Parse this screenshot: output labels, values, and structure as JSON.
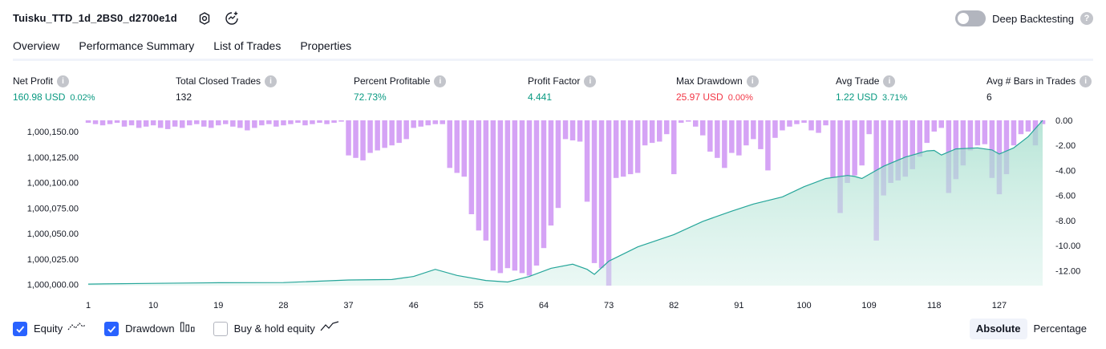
{
  "header": {
    "strategy_name": "Tuisku_TTD_1d_2BS0_d2700e1d",
    "deep_backtesting_label": "Deep Backtesting",
    "deep_backtesting_enabled": false
  },
  "tabs": [
    {
      "label": "Overview",
      "active": true
    },
    {
      "label": "Performance Summary",
      "active": false
    },
    {
      "label": "List of Trades",
      "active": false
    },
    {
      "label": "Properties",
      "active": false
    }
  ],
  "metrics": [
    {
      "label": "Net Profit",
      "value": "160.98 USD",
      "sub": "0.02%",
      "color": "#089981"
    },
    {
      "label": "Total Closed Trades",
      "value": "132",
      "sub": "",
      "color": "#131722"
    },
    {
      "label": "Percent Profitable",
      "value": "72.73%",
      "sub": "",
      "color": "#089981"
    },
    {
      "label": "Profit Factor",
      "value": "4.441",
      "sub": "",
      "color": "#089981"
    },
    {
      "label": "Max Drawdown",
      "value": "25.97 USD",
      "sub": "0.00%",
      "color": "#f23645"
    },
    {
      "label": "Avg Trade",
      "value": "1.22 USD",
      "sub": "3.71%",
      "color": "#089981"
    },
    {
      "label": "Avg # Bars in Trades",
      "value": "6",
      "sub": "",
      "color": "#131722"
    }
  ],
  "chart_data": {
    "type": "area",
    "left_axis_ticks": [
      "1,000,150.00",
      "1,000,125.00",
      "1,000,100.00",
      "1,000,075.00",
      "1,000,050.00",
      "1,000,025.00",
      "1,000,000.00"
    ],
    "left_axis_values": [
      1000150,
      1000125,
      1000100,
      1000075,
      1000050,
      1000025,
      1000000
    ],
    "right_axis_ticks": [
      "0.00",
      "-2.00",
      "-4.00",
      "-6.00",
      "-8.00",
      "-10.00",
      "-12.00"
    ],
    "right_axis_values": [
      0,
      -2,
      -4,
      -6,
      -8,
      -10,
      -12
    ],
    "x_ticks": [
      "1",
      "10",
      "19",
      "28",
      "37",
      "46",
      "55",
      "64",
      "73",
      "82",
      "91",
      "100",
      "109",
      "118",
      "127"
    ],
    "x_range": [
      1,
      133
    ],
    "equity_range": [
      999999,
      1000161
    ],
    "drawdown_range": [
      -13.2,
      0
    ],
    "series": [
      {
        "name": "Equity",
        "color": "#26a69a",
        "points": [
          [
            1,
            1000000.5
          ],
          [
            10,
            1000001.2
          ],
          [
            19,
            1000001.8
          ],
          [
            28,
            1000002.0
          ],
          [
            37,
            1000004.5
          ],
          [
            43,
            1000005
          ],
          [
            46,
            1000008
          ],
          [
            49,
            1000015
          ],
          [
            52,
            1000009
          ],
          [
            56,
            1000004
          ],
          [
            59,
            1000002.5
          ],
          [
            62,
            1000008
          ],
          [
            65,
            1000016
          ],
          [
            68,
            1000020
          ],
          [
            70,
            1000015
          ],
          [
            71,
            1000010
          ],
          [
            73,
            1000023
          ],
          [
            77,
            1000037
          ],
          [
            82,
            1000049
          ],
          [
            86,
            1000062
          ],
          [
            90,
            1000072
          ],
          [
            93,
            1000079
          ],
          [
            97,
            1000086
          ],
          [
            100,
            1000096
          ],
          [
            103,
            1000104
          ],
          [
            106,
            1000107
          ],
          [
            107,
            1000106
          ],
          [
            108,
            1000104
          ],
          [
            109,
            1000108
          ],
          [
            111,
            1000116
          ],
          [
            114,
            1000125
          ],
          [
            117,
            1000131
          ],
          [
            118,
            1000131.5
          ],
          [
            119,
            1000127
          ],
          [
            121,
            1000133
          ],
          [
            124,
            1000134
          ],
          [
            126,
            1000132
          ],
          [
            127,
            1000128
          ],
          [
            129,
            1000134
          ],
          [
            131,
            1000145
          ],
          [
            133,
            1000161
          ]
        ]
      },
      {
        "name": "Drawdown",
        "color": "#ce93f3",
        "values": [
          -0.2,
          -0.3,
          -0.4,
          -0.3,
          -0.2,
          -0.5,
          -0.4,
          -0.6,
          -0.5,
          -0.4,
          -0.6,
          -0.7,
          -0.5,
          -0.6,
          -0.4,
          -0.3,
          -0.5,
          -0.6,
          -0.4,
          -0.3,
          -0.5,
          -0.6,
          -0.8,
          -0.6,
          -0.4,
          -0.3,
          -0.5,
          -0.4,
          -0.3,
          -0.2,
          -0.4,
          -0.3,
          -0.2,
          -0.3,
          -0.2,
          -0.1,
          -2.8,
          -3.0,
          -3.2,
          -2.6,
          -2.4,
          -2.2,
          -2.0,
          -1.8,
          -1.5,
          -0.6,
          -0.5,
          -0.4,
          -0.3,
          -0.3,
          -3.8,
          -4.2,
          -4.5,
          -7.5,
          -8.8,
          -9.6,
          -12.0,
          -12.2,
          -11.8,
          -12.0,
          -12.2,
          -12.4,
          -11.6,
          -10.2,
          -8.4,
          -7.0,
          -1.5,
          -1.6,
          -1.7,
          -6.5,
          -11.4,
          -11.8,
          -13.2,
          -4.6,
          -4.5,
          -4.3,
          -4.2,
          -2.0,
          -1.8,
          -1.7,
          -1.1,
          -4.3,
          -0.2,
          -0.1,
          -0.5,
          -1.2,
          -2.5,
          -3.0,
          -3.8,
          -2.6,
          -2.8,
          -2.0,
          -1.5,
          -2.3,
          -4.0,
          -1.4,
          -0.8,
          -0.5,
          -0.3,
          -0.2,
          -0.8,
          -1.0,
          -0.4,
          -4.6,
          -7.4,
          -5.0,
          -4.4,
          -3.6,
          -1.1,
          -9.6,
          -6.0,
          -5.0,
          -4.8,
          -4.5,
          -3.9,
          -2.9,
          -1.8,
          -0.9,
          -0.6,
          -5.8,
          -4.7,
          -3.6,
          -2.4,
          -2.0,
          -1.9,
          -4.6,
          -5.9,
          -4.3,
          -2.0,
          -1.1,
          -0.9,
          -2.0,
          -0.3
        ]
      }
    ]
  },
  "legend": {
    "items": [
      {
        "label": "Equity",
        "checked": true,
        "icon": "equity-line-icon"
      },
      {
        "label": "Drawdown",
        "checked": true,
        "icon": "drawdown-bars-icon"
      },
      {
        "label": "Buy & hold equity",
        "checked": false,
        "icon": "buy-hold-line-icon"
      }
    ],
    "modes": [
      {
        "label": "Absolute",
        "active": true
      },
      {
        "label": "Percentage",
        "active": false
      }
    ]
  },
  "colors": {
    "accent": "#2962ff",
    "positive": "#089981",
    "negative": "#f23645",
    "equity_fill": "#d1efe7"
  }
}
